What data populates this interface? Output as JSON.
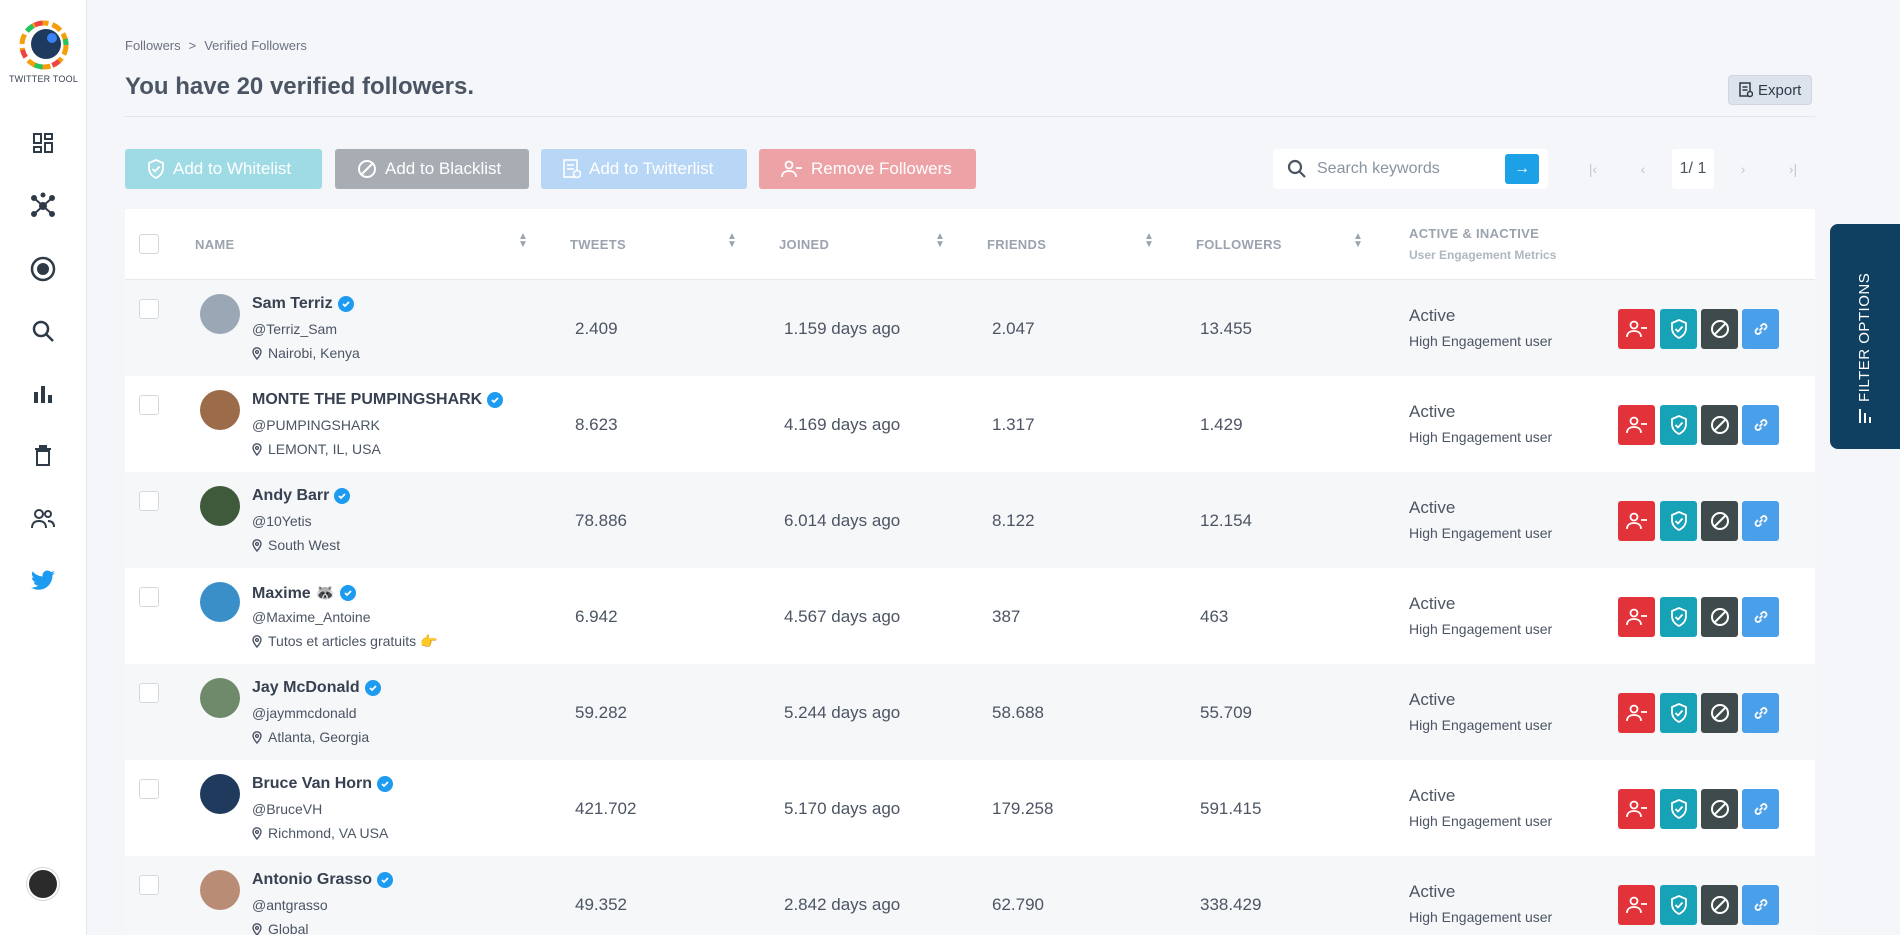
{
  "app": {
    "logo_text": "TWITTER TOOL"
  },
  "sidebar": {
    "items": [
      {
        "icon": "dashboard-icon"
      },
      {
        "icon": "network-icon"
      },
      {
        "icon": "target-icon"
      },
      {
        "icon": "search-icon"
      },
      {
        "icon": "bar-chart-icon"
      },
      {
        "icon": "trash-icon"
      },
      {
        "icon": "users-icon"
      },
      {
        "icon": "twitter-icon"
      }
    ]
  },
  "breadcrumb": {
    "parent": "Followers",
    "separator": ">",
    "current": "Verified Followers"
  },
  "page_title": "You have 20 verified followers.",
  "export_label": "Export",
  "toolbar": {
    "whitelist": "Add to Whitelist",
    "blacklist": "Add to Blacklist",
    "twitterlist": "Add to Twitterlist",
    "remove": "Remove Followers"
  },
  "search": {
    "placeholder": "Search keywords",
    "value": ""
  },
  "pagination": {
    "current": "1/ 1"
  },
  "table": {
    "headers": {
      "name": "NAME",
      "tweets": "TWEETS",
      "joined": "JOINED",
      "friends": "FRIENDS",
      "followers": "FOLLOWERS",
      "status": "ACTIVE & INACTIVE",
      "status_sub": "User Engagement Metrics"
    },
    "rows": [
      {
        "name": "Sam Terriz",
        "handle": "@Terriz_Sam",
        "location": "Nairobi, Kenya",
        "tweets": "2.409",
        "joined": "1.159 days ago",
        "friends": "2.047",
        "followers": "13.455",
        "status": "Active",
        "engagement": "High Engagement user",
        "avatar_color": "#9aa7b4"
      },
      {
        "name": "MONTE THE PUMPINGSHARK",
        "handle": "@PUMPINGSHARK",
        "location": "LEMONT, IL, USA",
        "tweets": "8.623",
        "joined": "4.169 days ago",
        "friends": "1.317",
        "followers": "1.429",
        "status": "Active",
        "engagement": "High Engagement user",
        "avatar_color": "#9b6b4a"
      },
      {
        "name": "Andy Barr",
        "handle": "@10Yetis",
        "location": "South West",
        "tweets": "78.886",
        "joined": "6.014 days ago",
        "friends": "8.122",
        "followers": "12.154",
        "status": "Active",
        "engagement": "High Engagement user",
        "avatar_color": "#3f5a3a"
      },
      {
        "name": "Maxime 🦝",
        "handle": "@Maxime_Antoine",
        "location": "Tutos et articles gratuits 👉",
        "tweets": "6.942",
        "joined": "4.567 days ago",
        "friends": "387",
        "followers": "463",
        "status": "Active",
        "engagement": "High Engagement user",
        "avatar_color": "#3a8fc9"
      },
      {
        "name": "Jay McDonald",
        "handle": "@jaymmcdonald",
        "location": "Atlanta, Georgia",
        "tweets": "59.282",
        "joined": "5.244 days ago",
        "friends": "58.688",
        "followers": "55.709",
        "status": "Active",
        "engagement": "High Engagement user",
        "avatar_color": "#6e8a6a"
      },
      {
        "name": "Bruce Van Horn",
        "handle": "@BruceVH",
        "location": "Richmond, VA USA",
        "tweets": "421.702",
        "joined": "5.170 days ago",
        "friends": "179.258",
        "followers": "591.415",
        "status": "Active",
        "engagement": "High Engagement user",
        "avatar_color": "#1f3a5c"
      },
      {
        "name": "Antonio Grasso",
        "handle": "@antgrasso",
        "location": "Global",
        "tweets": "49.352",
        "joined": "2.842 days ago",
        "friends": "62.790",
        "followers": "338.429",
        "status": "Active",
        "engagement": "High Engagement user",
        "avatar_color": "#b98d75"
      }
    ]
  },
  "filter_tab": {
    "label": "FILTER OPTIONS"
  }
}
